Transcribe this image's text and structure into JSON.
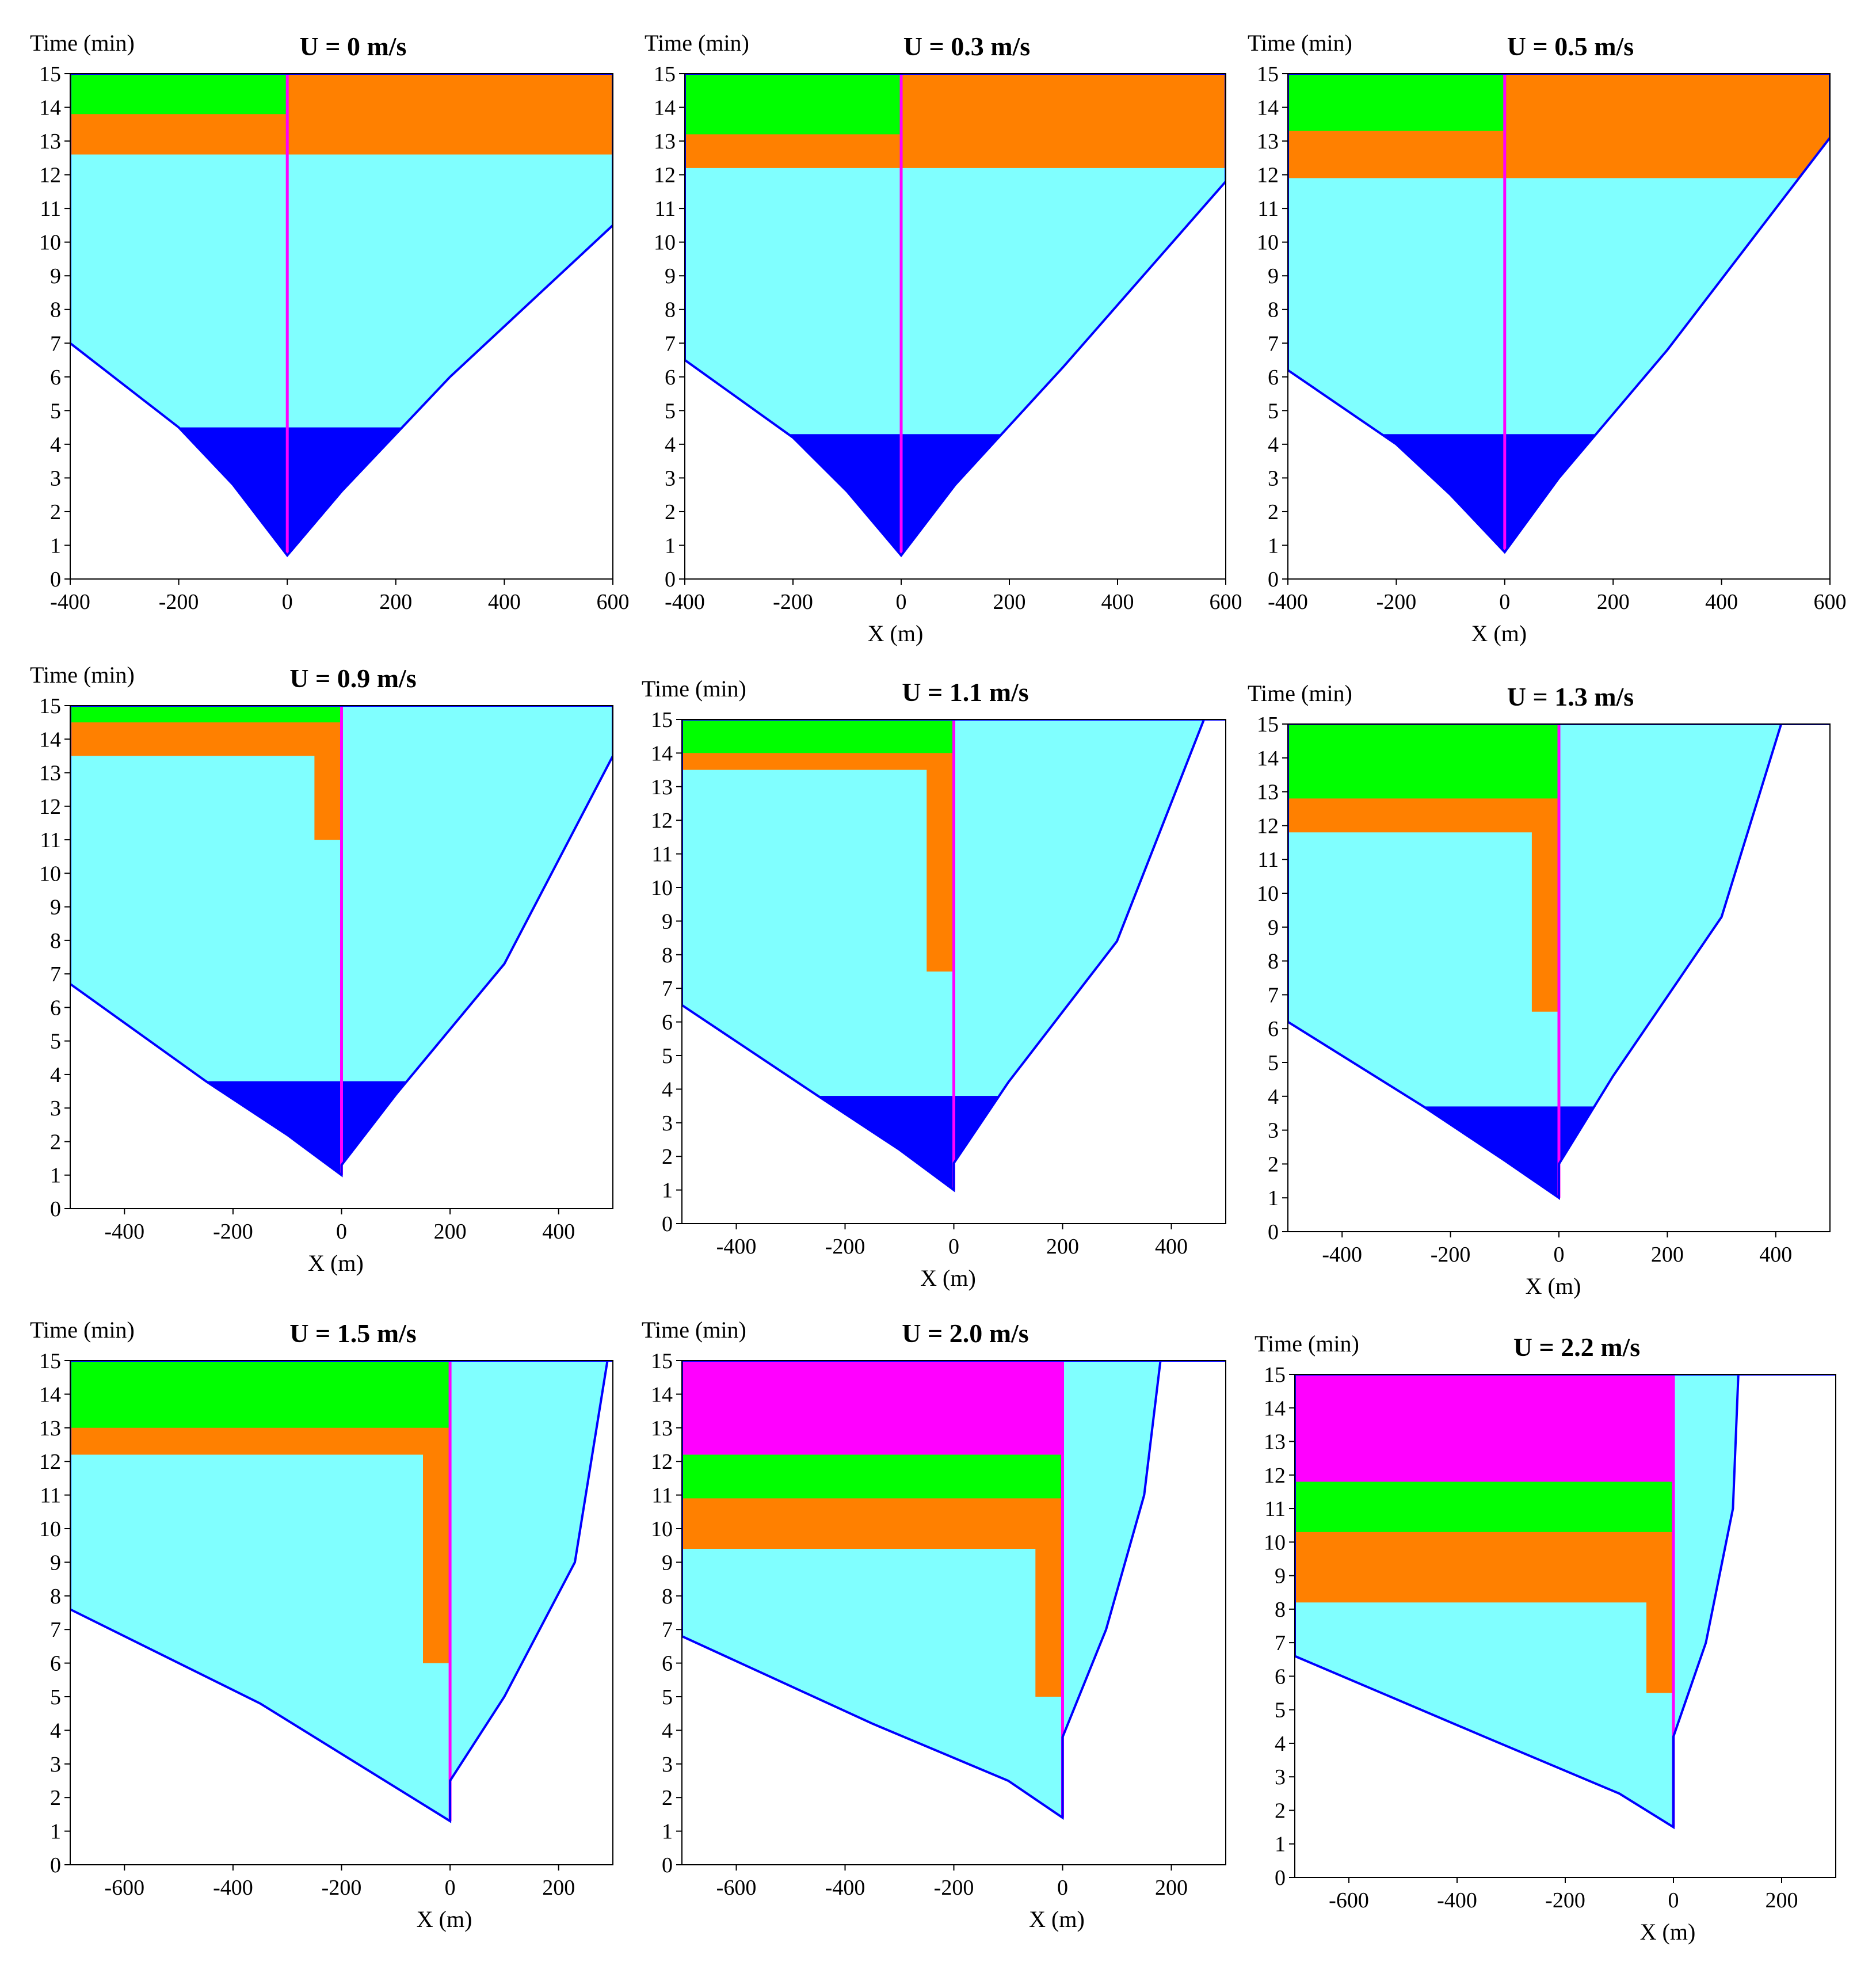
{
  "figure": {
    "colors": {
      "deep_blue": "#0000ff",
      "cyan": "#80ffff",
      "orange": "#ff8000",
      "green": "#00ff00",
      "magenta": "#ff00ff",
      "yellow": "#ffff00",
      "frame": "#000000"
    }
  },
  "chart_data": [
    {
      "type": "area",
      "title": "U = 0 m/s",
      "ylabel": "Time (min)",
      "xlabel": "",
      "xlim": [
        -400,
        600
      ],
      "ylim": [
        0,
        15
      ],
      "x_ticks": [
        "-400",
        "-200",
        "0",
        "200",
        "400",
        "600"
      ],
      "y_ticks": [
        "0",
        "1",
        "2",
        "3",
        "4",
        "5",
        "6",
        "7",
        "8",
        "9",
        "10",
        "11",
        "12",
        "13",
        "14",
        "15"
      ],
      "fronts": {
        "left": [
          [
            -400,
            7
          ],
          [
            -200,
            4.5
          ],
          [
            -100,
            2.8
          ],
          [
            0,
            0.7
          ]
        ],
        "right": [
          [
            0,
            0.7
          ],
          [
            100,
            2.6
          ],
          [
            300,
            6
          ],
          [
            600,
            10.5
          ]
        ],
        "blue_top": 4.5,
        "orange_bottom_left": 12.6,
        "orange_bottom_right": 11.8,
        "green_bottom": 13.8
      }
    },
    {
      "type": "area",
      "title": "U = 0.3 m/s",
      "ylabel": "Time (min)",
      "xlabel": "X (m)",
      "xlim": [
        -400,
        600
      ],
      "ylim": [
        0,
        15
      ],
      "x_ticks": [
        "-400",
        "-200",
        "0",
        "200",
        "400",
        "600"
      ],
      "y_ticks": [
        "0",
        "1",
        "2",
        "3",
        "4",
        "5",
        "6",
        "7",
        "8",
        "9",
        "10",
        "11",
        "12",
        "13",
        "14",
        "15"
      ],
      "fronts": {
        "left": [
          [
            -400,
            6.5
          ],
          [
            -200,
            4.2
          ],
          [
            -100,
            2.6
          ],
          [
            0,
            0.7
          ]
        ],
        "right": [
          [
            0,
            0.7
          ],
          [
            100,
            2.8
          ],
          [
            300,
            6.3
          ],
          [
            600,
            11.8
          ]
        ],
        "blue_top": 4.3,
        "orange_bottom_left": 12.2,
        "orange_bottom_right": 11.4,
        "green_bottom": 13.2
      }
    },
    {
      "type": "area",
      "title": "U = 0.5 m/s",
      "ylabel": "Time (min)",
      "xlabel": "X (m)",
      "xlim": [
        -400,
        600
      ],
      "ylim": [
        0,
        15
      ],
      "x_ticks": [
        "-400",
        "-200",
        "0",
        "200",
        "400",
        "600"
      ],
      "y_ticks": [
        "0",
        "1",
        "2",
        "3",
        "4",
        "5",
        "6",
        "7",
        "8",
        "9",
        "10",
        "11",
        "12",
        "13",
        "14",
        "15"
      ],
      "fronts": {
        "left": [
          [
            -400,
            6.2
          ],
          [
            -200,
            4
          ],
          [
            -100,
            2.5
          ],
          [
            0,
            0.8
          ]
        ],
        "right": [
          [
            0,
            0.8
          ],
          [
            100,
            3
          ],
          [
            300,
            6.8
          ],
          [
            600,
            13.1
          ]
        ],
        "blue_top": 4.3,
        "orange_bottom_left": 11.9,
        "orange_bottom_right": 11.5,
        "green_bottom": 13.3
      }
    },
    {
      "type": "area",
      "title": "U = 0.9 m/s",
      "ylabel": "Time (min)",
      "xlabel": "X (m)",
      "xlim": [
        -500,
        500
      ],
      "ylim": [
        0,
        15
      ],
      "x_ticks": [
        "-400",
        "-200",
        "0",
        "200",
        "400"
      ],
      "y_ticks": [
        "0",
        "1",
        "2",
        "3",
        "4",
        "5",
        "6",
        "7",
        "8",
        "9",
        "10",
        "11",
        "12",
        "13",
        "14",
        "15"
      ],
      "fronts": {
        "left": [
          [
            -500,
            6.7
          ],
          [
            -250,
            3.8
          ],
          [
            -100,
            2.2
          ],
          [
            0,
            1
          ]
        ],
        "right": [
          [
            0,
            1.3
          ],
          [
            100,
            3.4
          ],
          [
            300,
            7.3
          ],
          [
            500,
            13.5
          ]
        ],
        "blue_top": 3.8,
        "orange_bottom_left": 13.5,
        "orange_bottom_right": 11,
        "green_bottom": 14.5
      }
    },
    {
      "type": "area",
      "title": "U = 1.1 m/s",
      "ylabel": "Time (min)",
      "xlabel": "X (m)",
      "xlim": [
        -500,
        500
      ],
      "ylim": [
        0,
        15
      ],
      "x_ticks": [
        "-400",
        "-200",
        "0",
        "200",
        "400"
      ],
      "y_ticks": [
        "0",
        "1",
        "2",
        "3",
        "4",
        "5",
        "6",
        "7",
        "8",
        "9",
        "10",
        "11",
        "12",
        "13",
        "14",
        "15"
      ],
      "fronts": {
        "left": [
          [
            -500,
            6.5
          ],
          [
            -250,
            3.8
          ],
          [
            -100,
            2.2
          ],
          [
            0,
            1
          ]
        ],
        "right": [
          [
            0,
            1.8
          ],
          [
            100,
            4.2
          ],
          [
            300,
            8.4
          ],
          [
            460,
            15
          ]
        ],
        "blue_top": 3.8,
        "orange_bottom_left": 13.5,
        "orange_bottom_right": 7.5,
        "green_bottom": 14
      }
    },
    {
      "type": "area",
      "title": "U = 1.3 m/s",
      "ylabel": "Time (min)",
      "xlabel": "X (m)",
      "xlim": [
        -500,
        500
      ],
      "ylim": [
        0,
        15
      ],
      "x_ticks": [
        "-400",
        "-200",
        "0",
        "200",
        "400"
      ],
      "y_ticks": [
        "0",
        "1",
        "2",
        "3",
        "4",
        "5",
        "6",
        "7",
        "8",
        "9",
        "10",
        "11",
        "12",
        "13",
        "14",
        "15"
      ],
      "fronts": {
        "left": [
          [
            -500,
            6.2
          ],
          [
            -250,
            3.7
          ],
          [
            -100,
            2.1
          ],
          [
            0,
            1
          ]
        ],
        "right": [
          [
            0,
            2
          ],
          [
            100,
            4.6
          ],
          [
            300,
            9.3
          ],
          [
            410,
            15
          ]
        ],
        "blue_top": 3.7,
        "orange_bottom_left": 11.8,
        "orange_bottom_right": 6.5,
        "green_bottom": 12.8
      }
    },
    {
      "type": "area",
      "title": "U = 1.5 m/s",
      "ylabel": "Time (min)",
      "xlabel": "X (m)",
      "xlim": [
        -700,
        300
      ],
      "ylim": [
        0,
        15
      ],
      "x_ticks": [
        "-600",
        "-400",
        "-200",
        "0",
        "200"
      ],
      "y_ticks": [
        "0",
        "1",
        "2",
        "3",
        "4",
        "5",
        "6",
        "7",
        "8",
        "9",
        "10",
        "11",
        "12",
        "13",
        "14",
        "15"
      ],
      "fronts": {
        "left": [
          [
            -700,
            7.6
          ],
          [
            -350,
            4.8
          ],
          [
            -100,
            2.3
          ],
          [
            0,
            1.3
          ]
        ],
        "right": [
          [
            0,
            2.5
          ],
          [
            100,
            5
          ],
          [
            230,
            9
          ],
          [
            290,
            15
          ]
        ],
        "blue_top": null,
        "orange_bottom_left": 12.2,
        "orange_bottom_right": 6,
        "green_bottom": 13
      }
    },
    {
      "type": "area",
      "title": "U = 2.0 m/s",
      "ylabel": "Time (min)",
      "xlabel": "X (m)",
      "xlim": [
        -700,
        300
      ],
      "ylim": [
        0,
        15
      ],
      "x_ticks": [
        "-600",
        "-400",
        "-200",
        "0",
        "200"
      ],
      "y_ticks": [
        "0",
        "1",
        "2",
        "3",
        "4",
        "5",
        "6",
        "7",
        "8",
        "9",
        "10",
        "11",
        "12",
        "13",
        "14",
        "15"
      ],
      "fronts": {
        "left": [
          [
            -700,
            6.8
          ],
          [
            -350,
            4.2
          ],
          [
            -100,
            2.5
          ],
          [
            0,
            1.4
          ]
        ],
        "right": [
          [
            0,
            3.8
          ],
          [
            80,
            7
          ],
          [
            150,
            11
          ],
          [
            180,
            15
          ]
        ],
        "blue_top": null,
        "orange_bottom_left": 9.4,
        "orange_bottom_right": 5,
        "green_bottom": 10.9,
        "magenta_bottom": 12.2
      }
    },
    {
      "type": "area",
      "title": "U = 2.2 m/s",
      "ylabel": "Time (min)",
      "xlabel": "X (m)",
      "xlim": [
        -700,
        300
      ],
      "ylim": [
        0,
        15
      ],
      "x_ticks": [
        "-600",
        "-400",
        "-200",
        "0",
        "200"
      ],
      "y_ticks": [
        "0",
        "1",
        "2",
        "3",
        "4",
        "5",
        "6",
        "7",
        "8",
        "9",
        "10",
        "11",
        "12",
        "13",
        "14",
        "15"
      ],
      "fronts": {
        "left": [
          [
            -700,
            6.6
          ],
          [
            -350,
            4.2
          ],
          [
            -100,
            2.5
          ],
          [
            0,
            1.5
          ]
        ],
        "right": [
          [
            0,
            4.2
          ],
          [
            60,
            7
          ],
          [
            110,
            11
          ],
          [
            120,
            15
          ]
        ],
        "blue_top": null,
        "orange_bottom_left": 8.2,
        "orange_bottom_right": 5.5,
        "green_bottom": 10.3,
        "magenta_bottom": 11.8
      }
    }
  ]
}
